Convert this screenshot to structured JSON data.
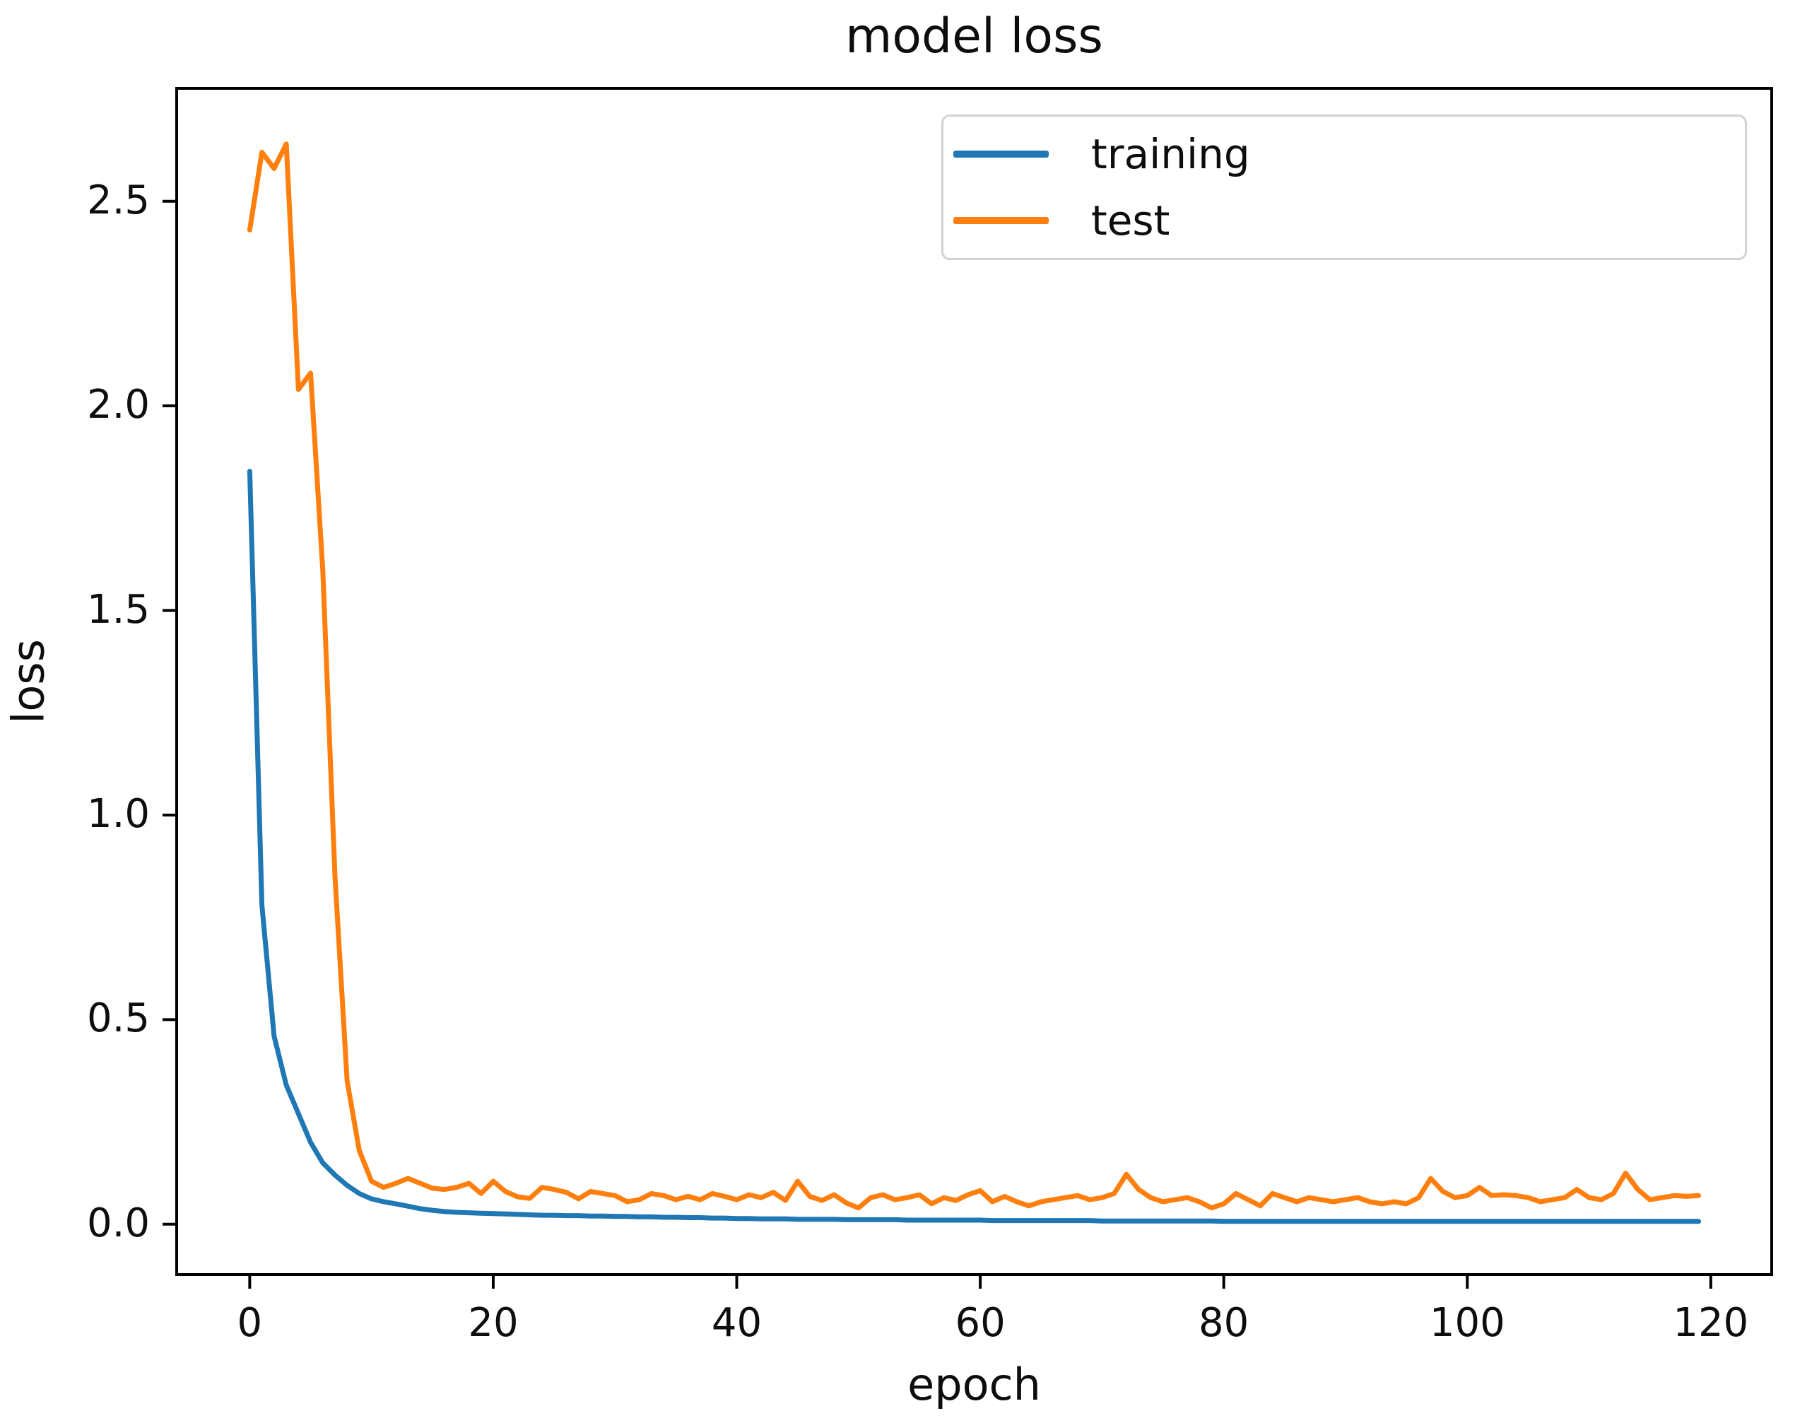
{
  "chart": {
    "title": "model loss",
    "xlabel": "epoch",
    "ylabel": "loss"
  },
  "legend": {
    "position": "upper right",
    "items": [
      {
        "label": "training",
        "color": "#1f77b4"
      },
      {
        "label": "test",
        "color": "#ff7f0e"
      }
    ]
  },
  "chart_data": {
    "type": "line",
    "title": "model loss",
    "xlabel": "epoch",
    "ylabel": "loss",
    "grid": false,
    "legend_position": "upper right",
    "x_start": 0,
    "x_step": 1,
    "n_points": 120,
    "xlim": [
      -6,
      125
    ],
    "ylim": [
      -0.123,
      2.776
    ],
    "xticks": [
      0,
      20,
      40,
      60,
      80,
      100,
      120
    ],
    "xtick_labels": [
      "0",
      "20",
      "40",
      "60",
      "80",
      "100",
      "120"
    ],
    "yticks": [
      0.0,
      0.5,
      1.0,
      1.5,
      2.0,
      2.5
    ],
    "ytick_labels": [
      "0.0",
      "0.5",
      "1.0",
      "1.5",
      "2.0",
      "2.5"
    ],
    "series": [
      {
        "name": "training",
        "color": "#1f77b4",
        "values": [
          1.84,
          0.78,
          0.46,
          0.34,
          0.27,
          0.2,
          0.15,
          0.12,
          0.095,
          0.075,
          0.062,
          0.055,
          0.05,
          0.044,
          0.038,
          0.034,
          0.031,
          0.029,
          0.028,
          0.027,
          0.026,
          0.025,
          0.024,
          0.023,
          0.022,
          0.022,
          0.021,
          0.021,
          0.02,
          0.02,
          0.019,
          0.019,
          0.018,
          0.018,
          0.017,
          0.017,
          0.016,
          0.016,
          0.015,
          0.015,
          0.014,
          0.014,
          0.013,
          0.013,
          0.013,
          0.012,
          0.012,
          0.012,
          0.012,
          0.011,
          0.011,
          0.011,
          0.011,
          0.011,
          0.01,
          0.01,
          0.01,
          0.01,
          0.01,
          0.01,
          0.01,
          0.009,
          0.009,
          0.009,
          0.009,
          0.009,
          0.009,
          0.009,
          0.009,
          0.009,
          0.008,
          0.008,
          0.008,
          0.008,
          0.008,
          0.008,
          0.008,
          0.008,
          0.008,
          0.008,
          0.007,
          0.007,
          0.007,
          0.007,
          0.007,
          0.007,
          0.007,
          0.007,
          0.007,
          0.007,
          0.007,
          0.007,
          0.007,
          0.007,
          0.007,
          0.007,
          0.007,
          0.007,
          0.007,
          0.007,
          0.007,
          0.007,
          0.007,
          0.007,
          0.007,
          0.007,
          0.007,
          0.007,
          0.007,
          0.007,
          0.007,
          0.007,
          0.007,
          0.007,
          0.007,
          0.007,
          0.007,
          0.007,
          0.007,
          0.007
        ]
      },
      {
        "name": "test",
        "color": "#ff7f0e",
        "values": [
          2.43,
          2.62,
          2.58,
          2.64,
          2.04,
          2.08,
          1.6,
          0.85,
          0.35,
          0.18,
          0.105,
          0.09,
          0.1,
          0.112,
          0.1,
          0.088,
          0.085,
          0.09,
          0.1,
          0.075,
          0.105,
          0.08,
          0.067,
          0.063,
          0.09,
          0.085,
          0.078,
          0.062,
          0.08,
          0.075,
          0.07,
          0.055,
          0.06,
          0.075,
          0.07,
          0.06,
          0.068,
          0.06,
          0.075,
          0.068,
          0.06,
          0.072,
          0.065,
          0.078,
          0.058,
          0.105,
          0.068,
          0.058,
          0.072,
          0.052,
          0.04,
          0.065,
          0.072,
          0.06,
          0.065,
          0.072,
          0.05,
          0.065,
          0.058,
          0.072,
          0.082,
          0.055,
          0.068,
          0.055,
          0.045,
          0.055,
          0.06,
          0.065,
          0.07,
          0.06,
          0.065,
          0.075,
          0.122,
          0.085,
          0.065,
          0.055,
          0.06,
          0.065,
          0.055,
          0.04,
          0.05,
          0.075,
          0.06,
          0.045,
          0.075,
          0.065,
          0.055,
          0.065,
          0.06,
          0.055,
          0.06,
          0.065,
          0.055,
          0.05,
          0.055,
          0.05,
          0.065,
          0.112,
          0.08,
          0.065,
          0.07,
          0.09,
          0.07,
          0.072,
          0.07,
          0.065,
          0.055,
          0.06,
          0.065,
          0.085,
          0.065,
          0.06,
          0.075,
          0.125,
          0.085,
          0.06,
          0.065,
          0.07,
          0.068,
          0.07
        ]
      }
    ]
  }
}
